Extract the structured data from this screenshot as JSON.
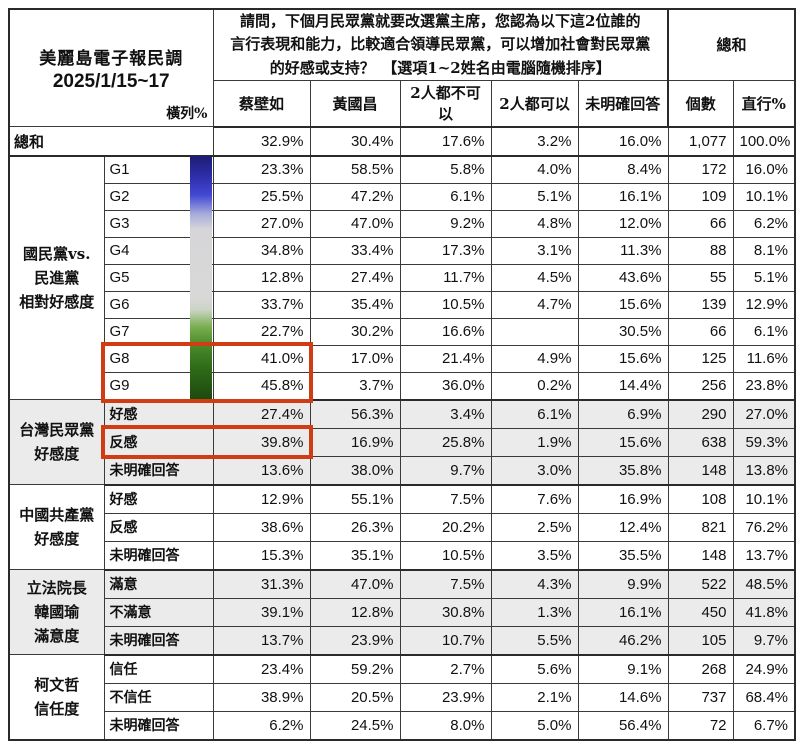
{
  "header": {
    "poll_title": "美麗島電子報民調",
    "poll_date": "2025/1/15~17",
    "row_pct_label": "橫列%",
    "question": "請問，下個月民眾黨就要改選黨主席，您認為以下這2位誰的\n言行表現和能力，比較適合領導民眾黨，可以增加社會對民眾黨\n的好感或支持？　【選項1~2姓名由電腦隨機排序】",
    "grand_total_label": "總和",
    "columns": [
      "蔡壁如",
      "黃國昌",
      "2人都不可以",
      "2人都可以",
      "未明確回答",
      "個數",
      "直行%"
    ]
  },
  "total_row": {
    "label": "總和",
    "cells": [
      "32.9%",
      "30.4%",
      "17.6%",
      "3.2%",
      "16.0%",
      "1,077",
      "100.0%"
    ]
  },
  "sections": [
    {
      "label": "國民黨vs.\n民進黨\n相對好感度",
      "rows": [
        {
          "label": "G1",
          "cells": [
            "23.3%",
            "58.5%",
            "5.8%",
            "4.0%",
            "8.4%",
            "172",
            "16.0%"
          ]
        },
        {
          "label": "G2",
          "cells": [
            "25.5%",
            "47.2%",
            "6.1%",
            "5.1%",
            "16.1%",
            "109",
            "10.1%"
          ]
        },
        {
          "label": "G3",
          "cells": [
            "27.0%",
            "47.0%",
            "9.2%",
            "4.8%",
            "12.0%",
            "66",
            "6.2%"
          ]
        },
        {
          "label": "G4",
          "cells": [
            "34.8%",
            "33.4%",
            "17.3%",
            "3.1%",
            "11.3%",
            "88",
            "8.1%"
          ]
        },
        {
          "label": "G5",
          "cells": [
            "12.8%",
            "27.4%",
            "11.7%",
            "4.5%",
            "43.6%",
            "55",
            "5.1%"
          ]
        },
        {
          "label": "G6",
          "cells": [
            "33.7%",
            "35.4%",
            "10.5%",
            "4.7%",
            "15.6%",
            "139",
            "12.9%"
          ]
        },
        {
          "label": "G7",
          "cells": [
            "22.7%",
            "30.2%",
            "16.6%",
            "",
            "30.5%",
            "66",
            "6.1%"
          ]
        },
        {
          "label": "G8",
          "cells": [
            "41.0%",
            "17.0%",
            "21.4%",
            "4.9%",
            "15.6%",
            "125",
            "11.6%"
          ]
        },
        {
          "label": "G9",
          "cells": [
            "45.8%",
            "3.7%",
            "36.0%",
            "0.2%",
            "14.4%",
            "256",
            "23.8%"
          ]
        }
      ]
    },
    {
      "label": "台灣民眾黨\n好感度",
      "rows": [
        {
          "label": "好感",
          "cells": [
            "27.4%",
            "56.3%",
            "3.4%",
            "6.1%",
            "6.9%",
            "290",
            "27.0%"
          ]
        },
        {
          "label": "反感",
          "cells": [
            "39.8%",
            "16.9%",
            "25.8%",
            "1.9%",
            "15.6%",
            "638",
            "59.3%"
          ]
        },
        {
          "label": "未明確回答",
          "cells": [
            "13.6%",
            "38.0%",
            "9.7%",
            "3.0%",
            "35.8%",
            "148",
            "13.8%"
          ]
        }
      ]
    },
    {
      "label": "中國共產黨\n好感度",
      "rows": [
        {
          "label": "好感",
          "cells": [
            "12.9%",
            "55.1%",
            "7.5%",
            "7.6%",
            "16.9%",
            "108",
            "10.1%"
          ]
        },
        {
          "label": "反感",
          "cells": [
            "38.6%",
            "26.3%",
            "20.2%",
            "2.5%",
            "12.4%",
            "821",
            "76.2%"
          ]
        },
        {
          "label": "未明確回答",
          "cells": [
            "15.3%",
            "35.1%",
            "10.5%",
            "3.5%",
            "35.5%",
            "148",
            "13.7%"
          ]
        }
      ]
    },
    {
      "label": "立法院長\n韓國瑜\n滿意度",
      "rows": [
        {
          "label": "滿意",
          "cells": [
            "31.3%",
            "47.0%",
            "7.5%",
            "4.3%",
            "9.9%",
            "522",
            "48.5%"
          ]
        },
        {
          "label": "不滿意",
          "cells": [
            "39.1%",
            "12.8%",
            "30.8%",
            "1.3%",
            "16.1%",
            "450",
            "41.8%"
          ]
        },
        {
          "label": "未明確回答",
          "cells": [
            "13.7%",
            "23.9%",
            "10.7%",
            "5.5%",
            "46.2%",
            "105",
            "9.7%"
          ]
        }
      ]
    },
    {
      "label": "柯文哲\n信任度",
      "rows": [
        {
          "label": "信任",
          "cells": [
            "23.4%",
            "59.2%",
            "2.7%",
            "5.6%",
            "9.1%",
            "268",
            "24.9%"
          ]
        },
        {
          "label": "不信任",
          "cells": [
            "38.9%",
            "20.5%",
            "23.9%",
            "2.1%",
            "14.6%",
            "737",
            "68.4%"
          ]
        },
        {
          "label": "未明確回答",
          "cells": [
            "6.2%",
            "24.5%",
            "8.0%",
            "5.0%",
            "56.4%",
            "72",
            "6.7%"
          ]
        }
      ]
    }
  ],
  "annotations": {
    "highlight_color": "#d23c15",
    "gradient_bar_stops": [
      "#1c1c74 0%",
      "#2d2da8 8%",
      "#4348d4 16%",
      "#a9aedb 24%",
      "#d6d6d9 30%",
      "#d8d8d8 58%",
      "#ccd4c5 63%",
      "#79af51 70%",
      "#4c8c2b 77%",
      "#2f6a17 87%",
      "#1b4a0e 100%"
    ]
  }
}
